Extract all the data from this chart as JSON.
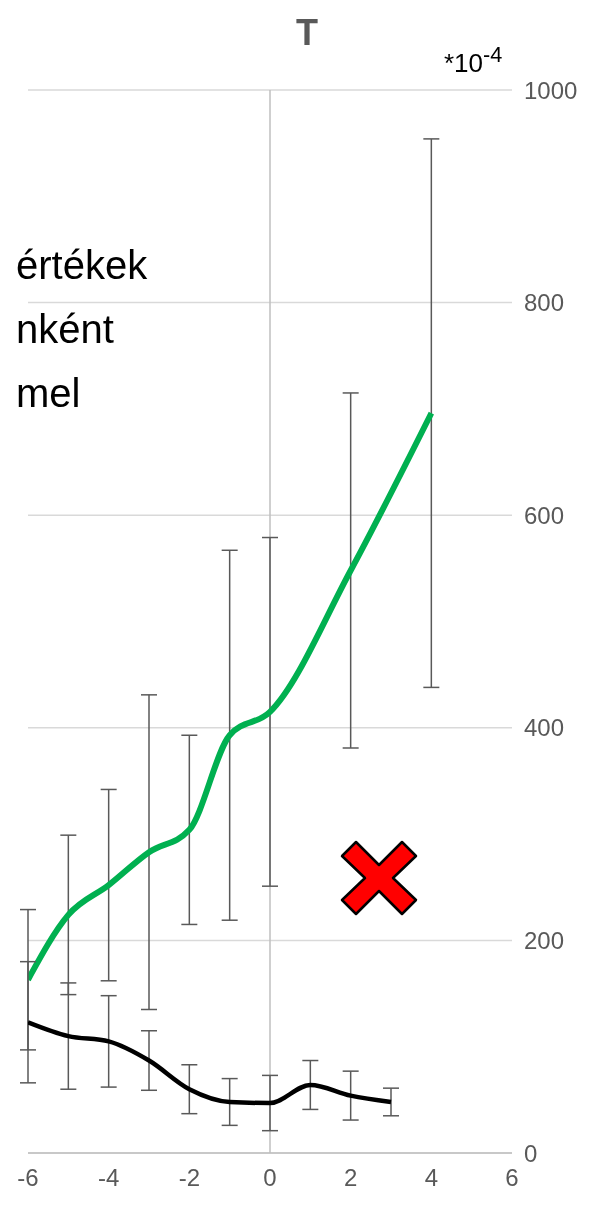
{
  "chart_data": {
    "type": "line",
    "title": "T",
    "annotations": [
      "*10$^{-4}$",
      "értékek",
      "nként",
      "mel"
    ],
    "xlim": [
      -6,
      6
    ],
    "xticks": [
      -6,
      -4,
      -2,
      0,
      2,
      4,
      6
    ],
    "ylim": [
      0,
      1000
    ],
    "yticks": [
      0,
      200,
      400,
      600,
      800,
      1000
    ],
    "grid": "y",
    "marker": "none",
    "line_style": "solid",
    "ref_lines": [
      {
        "axis": "x",
        "value": 0,
        "color": "#bfbfbf"
      }
    ],
    "series": [
      {
        "color": "#00b050",
        "x": [
          -6,
          -5,
          -4,
          -3,
          -2,
          -1,
          0,
          2,
          4
        ],
        "values": [
          163,
          224,
          252,
          283,
          304,
          393,
          415,
          548,
          696
        ],
        "errors": [
          66,
          75,
          90,
          148,
          89,
          174,
          164,
          167,
          258
        ]
      },
      {
        "color": "#000000",
        "x": [
          -6,
          -5,
          -4,
          -3,
          -2,
          -1,
          0,
          1,
          2,
          3
        ],
        "values": [
          123,
          110,
          105,
          87,
          60,
          48,
          47,
          64,
          54,
          48
        ],
        "errors": [
          57,
          50,
          43,
          28,
          23,
          22,
          26,
          23,
          23,
          13
        ]
      }
    ]
  }
}
